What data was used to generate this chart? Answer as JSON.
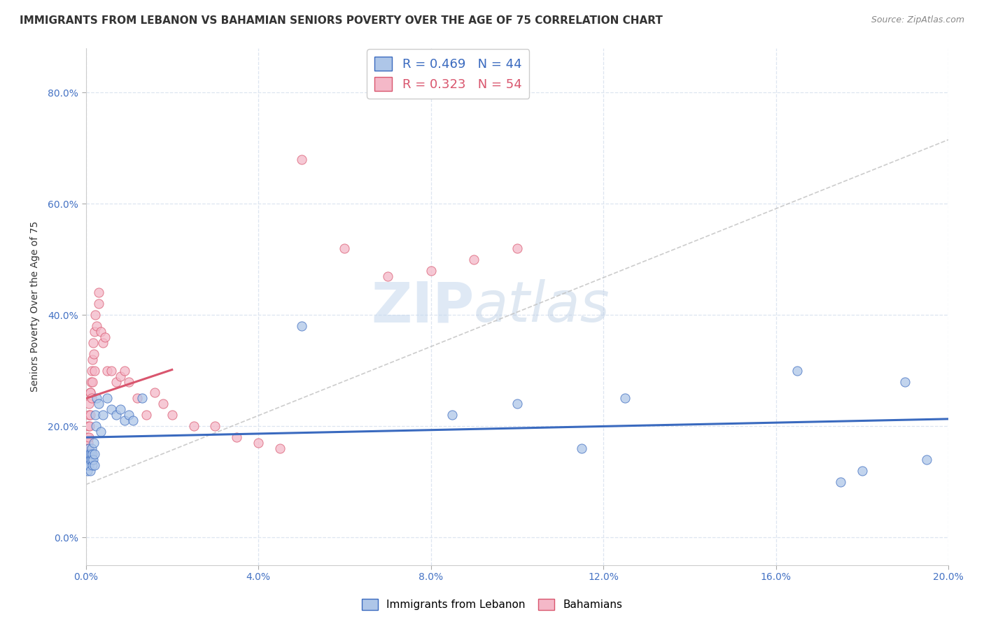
{
  "title": "IMMIGRANTS FROM LEBANON VS BAHAMIAN SENIORS POVERTY OVER THE AGE OF 75 CORRELATION CHART",
  "source": "Source: ZipAtlas.com",
  "ylabel": "Seniors Poverty Over the Age of 75",
  "xlim": [
    0,
    0.2
  ],
  "ylim": [
    -0.05,
    0.88
  ],
  "xticks": [
    0.0,
    0.04,
    0.08,
    0.12,
    0.16,
    0.2
  ],
  "yticks": [
    0.0,
    0.2,
    0.4,
    0.6,
    0.8
  ],
  "xticklabels": [
    "0.0%",
    "4.0%",
    "8.0%",
    "12.0%",
    "16.0%",
    "20.0%"
  ],
  "yticklabels": [
    "0.0%",
    "20.0%",
    "40.0%",
    "60.0%",
    "80.0%"
  ],
  "blue_scatter_x": [
    0.0002,
    0.0003,
    0.0004,
    0.0005,
    0.0006,
    0.0007,
    0.0008,
    0.0008,
    0.0009,
    0.001,
    0.001,
    0.0012,
    0.0013,
    0.0014,
    0.0015,
    0.0016,
    0.0017,
    0.0018,
    0.002,
    0.002,
    0.0022,
    0.0023,
    0.0025,
    0.003,
    0.0035,
    0.004,
    0.005,
    0.006,
    0.007,
    0.008,
    0.009,
    0.01,
    0.011,
    0.013,
    0.05,
    0.085,
    0.1,
    0.115,
    0.125,
    0.165,
    0.175,
    0.18,
    0.19,
    0.195
  ],
  "blue_scatter_y": [
    0.13,
    0.14,
    0.12,
    0.15,
    0.13,
    0.16,
    0.14,
    0.13,
    0.15,
    0.14,
    0.12,
    0.15,
    0.14,
    0.16,
    0.13,
    0.15,
    0.14,
    0.17,
    0.15,
    0.13,
    0.22,
    0.2,
    0.25,
    0.24,
    0.19,
    0.22,
    0.25,
    0.23,
    0.22,
    0.23,
    0.21,
    0.22,
    0.21,
    0.25,
    0.38,
    0.22,
    0.24,
    0.16,
    0.25,
    0.3,
    0.1,
    0.12,
    0.28,
    0.14
  ],
  "pink_scatter_x": [
    0.0001,
    0.0002,
    0.0003,
    0.0003,
    0.0004,
    0.0005,
    0.0005,
    0.0006,
    0.0006,
    0.0007,
    0.0007,
    0.0008,
    0.0009,
    0.001,
    0.001,
    0.0011,
    0.0012,
    0.0013,
    0.0014,
    0.0015,
    0.0016,
    0.0017,
    0.0018,
    0.002,
    0.002,
    0.0022,
    0.0025,
    0.003,
    0.003,
    0.0035,
    0.004,
    0.0045,
    0.005,
    0.006,
    0.007,
    0.008,
    0.009,
    0.01,
    0.012,
    0.014,
    0.016,
    0.018,
    0.02,
    0.025,
    0.03,
    0.035,
    0.04,
    0.045,
    0.05,
    0.06,
    0.07,
    0.08,
    0.09,
    0.1
  ],
  "pink_scatter_y": [
    0.14,
    0.16,
    0.15,
    0.14,
    0.18,
    0.15,
    0.17,
    0.2,
    0.16,
    0.22,
    0.18,
    0.24,
    0.2,
    0.26,
    0.22,
    0.26,
    0.28,
    0.3,
    0.25,
    0.32,
    0.28,
    0.35,
    0.33,
    0.37,
    0.3,
    0.4,
    0.38,
    0.44,
    0.42,
    0.37,
    0.35,
    0.36,
    0.3,
    0.3,
    0.28,
    0.29,
    0.3,
    0.28,
    0.25,
    0.22,
    0.26,
    0.24,
    0.22,
    0.2,
    0.2,
    0.18,
    0.17,
    0.16,
    0.68,
    0.52,
    0.47,
    0.48,
    0.5,
    0.52
  ],
  "blue_color": "#aec6e8",
  "pink_color": "#f4b8c8",
  "blue_line_color": "#3a6abf",
  "pink_line_color": "#d9566e",
  "gray_line_color": "#c0c0c0",
  "watermark_zip": "ZIP",
  "watermark_atlas": "atlas",
  "background_color": "#ffffff",
  "grid_color": "#dde5f0",
  "title_fontsize": 11,
  "axis_label_fontsize": 10,
  "tick_fontsize": 10,
  "legend_fontsize": 13
}
